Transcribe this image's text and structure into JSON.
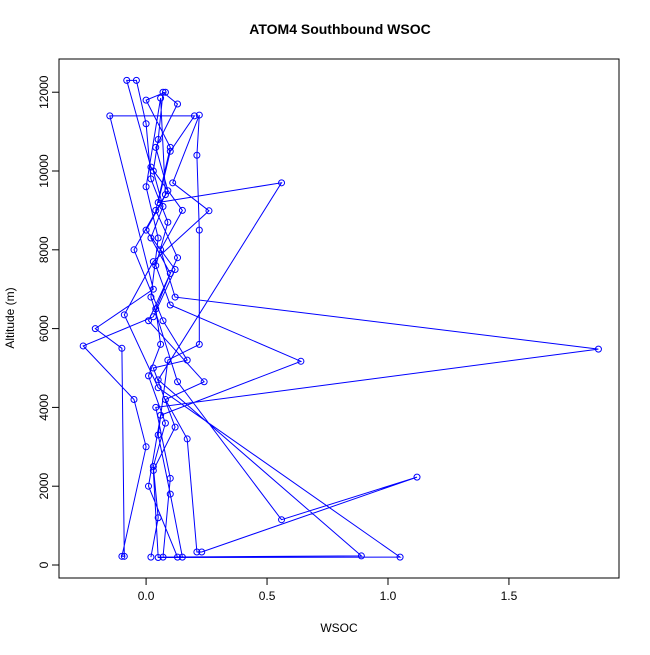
{
  "chart_data": {
    "type": "line",
    "title": "ATOM4 Southbound WSOC",
    "x_label": "WSOC",
    "y_label": "Altitude (m)",
    "color": "#0000ff",
    "xlim": [
      -0.36,
      1.955
    ],
    "ylim": [
      -330,
      12843
    ],
    "xticks": [
      {
        "value": 0,
        "label": "0.0"
      },
      0.5,
      {
        "value": 1,
        "label": "1.0"
      },
      1.5
    ],
    "yticks": [
      0,
      2000,
      4000,
      6000,
      8000,
      10000,
      12000
    ],
    "x": [
      0.02,
      0.05,
      0.03,
      0.08,
      0.01,
      0.06,
      0.04,
      0.1,
      0.02,
      0.07,
      0.03,
      0.05,
      0.07,
      0.13,
      0.04,
      0.09,
      0.0,
      0.12,
      0.03,
      -0.26,
      -0.05,
      0.0,
      -0.1,
      -0.09,
      -0.1,
      -0.21,
      0.03,
      -0.15,
      0.2,
      0.1,
      0.05,
      0.56,
      0.05,
      0.89,
      0.07,
      0.1,
      0.04,
      1.87,
      0.12,
      0.06,
      0.15,
      0.02,
      -0.08,
      -0.04,
      0.0,
      0.02,
      0.09,
      0.04,
      0.1,
      0.64,
      0.06,
      0.01,
      0.13,
      0.15,
      0.1,
      0.05,
      0.09,
      0.22,
      0.22,
      0.21,
      0.22,
      0.11,
      0.26,
      0.03,
      -0.09,
      0.05,
      1.05,
      0.05,
      0.03,
      0.12,
      0.03,
      0.17,
      0.07,
      -0.05,
      0.08,
      0.06,
      0.0,
      0.05,
      0.02,
      0.13,
      0.56,
      1.12,
      0.23,
      0.21,
      0.17,
      0.08,
      0.24,
      0.01,
      0.13,
      0.04,
      0.1,
      0.0,
      0.08
    ],
    "values": [
      200,
      1200,
      2500,
      3600,
      4800,
      5600,
      6500,
      7400,
      8300,
      9100,
      10000,
      10800,
      12000,
      11700,
      10600,
      9500,
      8500,
      7500,
      6300,
      5560,
      4200,
      3000,
      220,
      220,
      5500,
      6000,
      7000,
      11400,
      11400,
      10500,
      9200,
      9700,
      4700,
      230,
      200,
      2200,
      4000,
      5480,
      6800,
      8000,
      9000,
      10100,
      12300,
      12300,
      11200,
      9800,
      8700,
      7600,
      6600,
      5170,
      3800,
      2000,
      200,
      200,
      1800,
      3300,
      5200,
      5600,
      8500,
      10400,
      11420,
      9700,
      8990,
      7700,
      6350,
      4500,
      200,
      190,
      2400,
      3500,
      5000,
      5200,
      6200,
      8000,
      9400,
      11850,
      9600,
      8300,
      6800,
      4650,
      1150,
      2230,
      330,
      330,
      3200,
      4200,
      4650,
      6200,
      7800,
      9000,
      10600,
      11800,
      12000
    ]
  }
}
